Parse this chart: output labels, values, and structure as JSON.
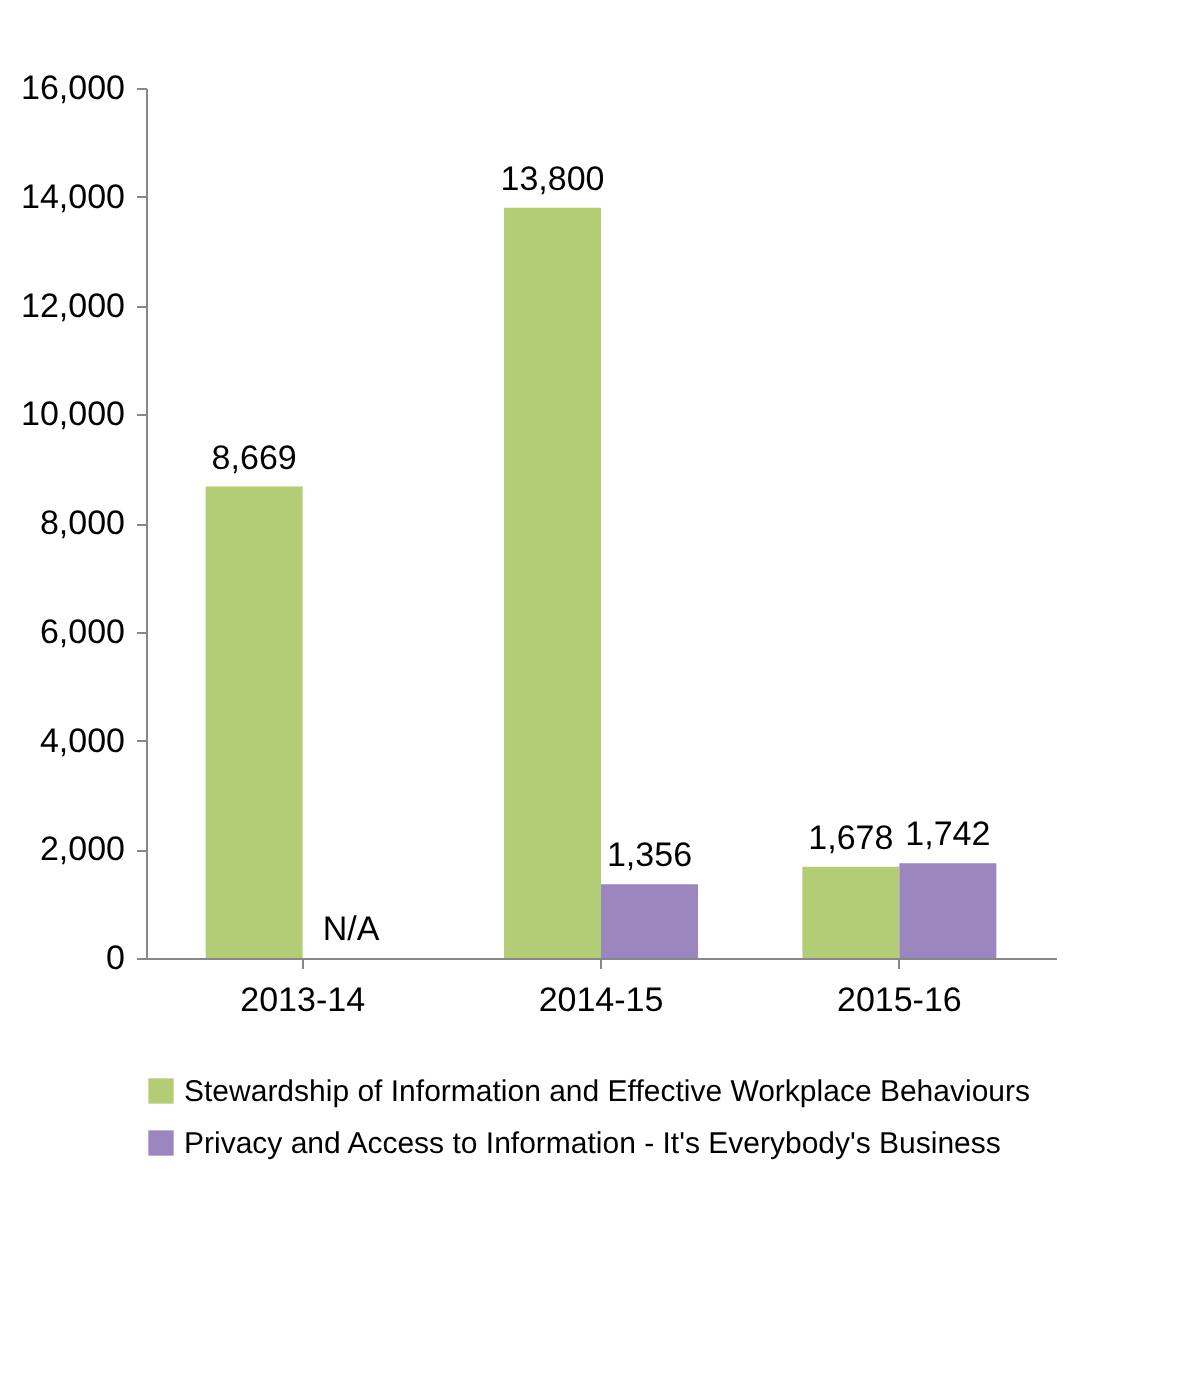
{
  "chart_data": {
    "type": "bar",
    "categories": [
      "2013-14",
      "2014-15",
      "2015-16"
    ],
    "series": [
      {
        "name": "Stewardship of Information and Effective Workplace Behaviours",
        "color": "#b3cd76",
        "values": [
          8669,
          13800,
          1678
        ],
        "value_labels": [
          "8,669",
          "13,800",
          "1,678"
        ]
      },
      {
        "name": "Privacy and Access to Information - It's Everybody's Business",
        "color": "#9b86bf",
        "values": [
          null,
          1356,
          1742
        ],
        "value_labels": [
          "N/A",
          "1,356",
          "1,742"
        ]
      }
    ],
    "ylim": [
      0,
      16000
    ],
    "yticks": [
      0,
      {
        "value": 2000,
        "label": "2,000"
      },
      {
        "value": 4000,
        "label": "4,000"
      },
      {
        "value": 6000,
        "label": "6,000"
      },
      {
        "value": 8000,
        "label": "8,000"
      },
      {
        "value": 10000,
        "label": "10,000"
      },
      {
        "value": 12000,
        "label": "12,000"
      },
      {
        "value": 14000,
        "label": "14,000"
      },
      {
        "value": 16000,
        "label": "16,000"
      }
    ],
    "grid": false,
    "legend": "bottom"
  }
}
